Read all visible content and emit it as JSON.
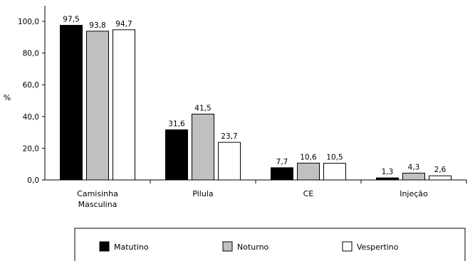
{
  "chart_data": {
    "type": "bar",
    "ylabel": "%",
    "ylim": [
      0,
      100
    ],
    "yticks": [
      "0,0",
      "20,0",
      "40,0",
      "60,0",
      "80,0",
      "100,0"
    ],
    "categories": [
      [
        "Camisinha",
        "Masculina"
      ],
      [
        "Pilula"
      ],
      [
        "CE"
      ],
      [
        "Injeção"
      ]
    ],
    "series": [
      {
        "name": "Matutino",
        "color": "#000000",
        "values": [
          97.5,
          31.6,
          7.7,
          1.3
        ],
        "labels": [
          "97,5",
          "31,6",
          "7,7",
          "1,3"
        ]
      },
      {
        "name": "Noturno",
        "color": "#c0c0c0",
        "values": [
          93.8,
          41.5,
          10.6,
          4.3
        ],
        "labels": [
          "93,8",
          "41,5",
          "10,6",
          "4,3"
        ]
      },
      {
        "name": "Vespertino",
        "color": "#ffffff",
        "values": [
          94.7,
          23.7,
          10.5,
          2.6
        ],
        "labels": [
          "94,7",
          "23,7",
          "10,5",
          "2,6"
        ]
      }
    ],
    "grid": false,
    "legend_position": "bottom"
  }
}
